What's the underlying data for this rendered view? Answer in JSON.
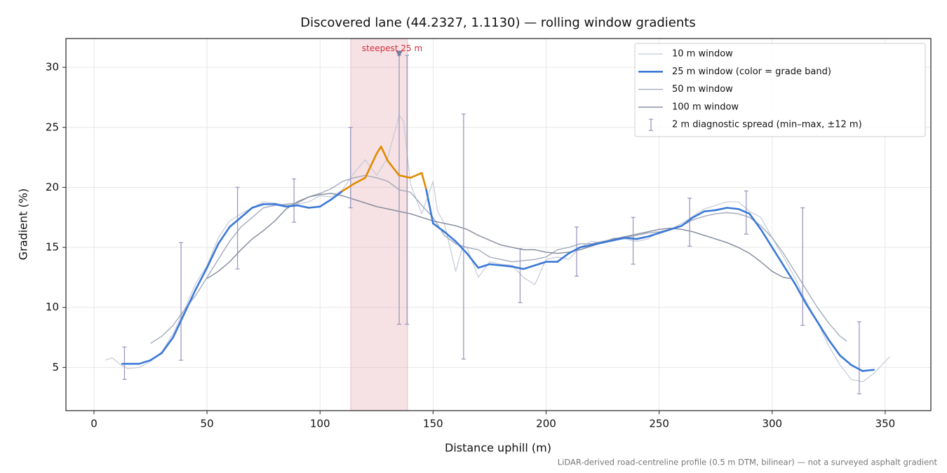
{
  "chart_data": {
    "type": "line",
    "title": "Discovered lane (44.2327, 1.1130) — rolling window gradients",
    "x_label": "Distance uphill (m)",
    "y_label": "Gradient (%)",
    "footnote": "LiDAR-derived road-centreline profile (0.5 m DTM, bilinear) — not a surveyed asphalt gradient",
    "xlim": [
      -12.4,
      370.2
    ],
    "ylim": [
      1.4,
      32.4
    ],
    "xticks": [
      0,
      50,
      100,
      150,
      200,
      250,
      300,
      350
    ],
    "yticks": [
      5,
      10,
      15,
      20,
      25,
      30
    ],
    "grid": true,
    "legend": "upper right",
    "series": [
      {
        "name": "10 m window",
        "color": "#c4cad6",
        "width": 1.2,
        "x": [
          5,
          8,
          12,
          15,
          20,
          25,
          30,
          35,
          40,
          45,
          50,
          55,
          60,
          65,
          70,
          75,
          80,
          85,
          90,
          95,
          100,
          105,
          110,
          115,
          120,
          125,
          130,
          135,
          137,
          140,
          145,
          150,
          152,
          155,
          160,
          163,
          165,
          170,
          175,
          180,
          185,
          190,
          195,
          200,
          205,
          210,
          215,
          220,
          225,
          230,
          235,
          240,
          245,
          250,
          255,
          260,
          265,
          270,
          275,
          280,
          285,
          290,
          295,
          300,
          305,
          310,
          315,
          320,
          325,
          330,
          335,
          340,
          345,
          350,
          352
        ],
        "values": [
          5.6,
          5.8,
          5.2,
          4.9,
          5.0,
          5.5,
          6.3,
          7.8,
          9.8,
          12,
          13.5,
          15.8,
          17.2,
          17.8,
          18.3,
          18.8,
          18.7,
          18.5,
          18.6,
          18.8,
          19.3,
          19.2,
          19.8,
          21.2,
          22.3,
          21.0,
          22.5,
          26.0,
          25.5,
          20.3,
          17.8,
          20.5,
          18,
          17,
          13.0,
          15,
          15,
          12.5,
          13.8,
          13.6,
          13.5,
          12.5,
          11.9,
          14.0,
          14.2,
          14.0,
          15.0,
          15.5,
          15.4,
          15.8,
          15.7,
          15.5,
          15.7,
          16.3,
          16.5,
          17.0,
          17.6,
          18.2,
          18.5,
          18.8,
          18.8,
          18.0,
          17.5,
          15.8,
          14.2,
          12.5,
          10.5,
          8.8,
          6.8,
          5.2,
          4.0,
          3.8,
          4.5,
          5.5,
          5.9
        ]
      },
      {
        "name": "25 m window (color = grade band)",
        "color": "#3a78d8",
        "width": 2.6,
        "x": [
          12.5,
          15,
          20,
          25,
          30,
          35,
          40,
          45,
          50,
          55,
          60,
          65,
          70,
          75,
          80,
          85,
          90,
          95,
          100,
          105,
          110,
          115,
          120,
          125,
          127,
          130,
          135,
          140,
          145,
          147,
          150,
          155,
          160,
          165,
          170,
          175,
          180,
          185,
          190,
          195,
          200,
          205,
          210,
          215,
          220,
          225,
          230,
          235,
          240,
          245,
          250,
          255,
          260,
          265,
          270,
          275,
          280,
          285,
          290,
          295,
          300,
          305,
          310,
          315,
          320,
          325,
          330,
          335,
          340,
          345
        ],
        "values": [
          5.3,
          5.3,
          5.3,
          5.6,
          6.2,
          7.5,
          9.5,
          11.5,
          13.3,
          15.3,
          16.7,
          17.5,
          18.3,
          18.6,
          18.6,
          18.4,
          18.5,
          18.3,
          18.4,
          19.0,
          19.7,
          20.3,
          20.8,
          22.8,
          23.4,
          22.2,
          21.0,
          20.8,
          21.2,
          19.8,
          17.0,
          16.3,
          15.5,
          14.5,
          13.3,
          13.6,
          13.5,
          13.4,
          13.2,
          13.5,
          13.8,
          13.8,
          14.5,
          15.0,
          15.2,
          15.4,
          15.6,
          15.8,
          15.7,
          15.9,
          16.2,
          16.5,
          16.8,
          17.5,
          18.0,
          18.1,
          18.3,
          18.2,
          17.8,
          16.5,
          15.0,
          13.5,
          12.0,
          10.3,
          8.8,
          7.3,
          6.0,
          5.2,
          4.7,
          4.8
        ],
        "band_colors": [
          "#3a78d8",
          "#3a78d8",
          "#3a78d8",
          "#3a78d8",
          "#3a78d8",
          "#3a78d8",
          "#3a78d8",
          "#3a78d8",
          "#3a78d8",
          "#3a78d8",
          "#3a78d8",
          "#3a78d8",
          "#3a78d8",
          "#3a78d8",
          "#3a78d8",
          "#3a78d8",
          "#3a78d8",
          "#3a78d8",
          "#3a78d8",
          "#3a78d8",
          "#e08a00",
          "#e08a00",
          "#e08a00",
          "#e08a00",
          "#e08a00",
          "#e08a00",
          "#e08a00",
          "#e08a00",
          "#e08a00",
          "#3a78d8",
          "#3a78d8",
          "#3a78d8",
          "#3a78d8",
          "#3a78d8",
          "#3a78d8",
          "#3a78d8",
          "#3a78d8",
          "#3a78d8",
          "#3a78d8",
          "#3a78d8",
          "#3a78d8",
          "#3a78d8",
          "#3a78d8",
          "#3a78d8",
          "#3a78d8",
          "#3a78d8",
          "#3a78d8",
          "#3a78d8",
          "#3a78d8",
          "#3a78d8",
          "#3a78d8",
          "#3a78d8",
          "#3a78d8",
          "#3a78d8",
          "#3a78d8",
          "#3a78d8",
          "#3a78d8",
          "#3a78d8",
          "#3a78d8",
          "#3a78d8",
          "#3a78d8",
          "#3a78d8",
          "#3a78d8",
          "#3a78d8",
          "#3a78d8",
          "#3a78d8",
          "#3a78d8",
          "#3a78d8",
          "#3a78d8",
          "#3a78d8"
        ]
      },
      {
        "name": "50 m window",
        "color": "#a2aabb",
        "width": 1.4,
        "x": [
          25,
          30,
          35,
          40,
          45,
          50,
          55,
          60,
          65,
          70,
          75,
          80,
          85,
          90,
          95,
          100,
          105,
          110,
          115,
          120,
          125,
          130,
          135,
          140,
          145,
          150,
          155,
          160,
          165,
          170,
          175,
          180,
          185,
          190,
          195,
          200,
          205,
          210,
          215,
          220,
          225,
          230,
          235,
          240,
          245,
          250,
          255,
          260,
          265,
          270,
          275,
          280,
          285,
          290,
          295,
          300,
          305,
          310,
          315,
          320,
          325,
          330,
          333
        ],
        "values": [
          7.0,
          7.6,
          8.5,
          9.8,
          11.0,
          12.5,
          14.0,
          15.5,
          16.7,
          17.5,
          18.3,
          18.5,
          18.6,
          18.7,
          19.2,
          19.5,
          19.9,
          20.5,
          20.8,
          21.0,
          20.8,
          20.5,
          19.8,
          19.6,
          18.5,
          17.5,
          16.0,
          15.3,
          15.0,
          14.8,
          14.2,
          14.0,
          13.8,
          13.9,
          14.0,
          14.2,
          14.8,
          15.0,
          15.3,
          15.3,
          15.5,
          15.7,
          15.8,
          16.0,
          16.2,
          16.3,
          16.5,
          16.8,
          17.3,
          17.6,
          17.8,
          17.9,
          17.8,
          17.5,
          16.8,
          15.8,
          14.5,
          13.0,
          11.5,
          10.0,
          8.7,
          7.6,
          7.2
        ]
      },
      {
        "name": "100 m window",
        "color": "#808899",
        "width": 1.4,
        "x": [
          50,
          55,
          60,
          65,
          70,
          75,
          80,
          85,
          90,
          95,
          100,
          105,
          110,
          115,
          120,
          125,
          130,
          135,
          140,
          145,
          150,
          155,
          160,
          165,
          170,
          175,
          180,
          185,
          190,
          195,
          200,
          205,
          210,
          215,
          220,
          225,
          230,
          235,
          240,
          245,
          250,
          255,
          260,
          265,
          270,
          275,
          280,
          285,
          290,
          295,
          300,
          305,
          308
        ],
        "values": [
          12.4,
          13.0,
          13.8,
          14.8,
          15.7,
          16.4,
          17.2,
          18.2,
          18.8,
          19.2,
          19.4,
          19.5,
          19.3,
          19.0,
          18.7,
          18.4,
          18.2,
          18.0,
          17.8,
          17.5,
          17.2,
          17.0,
          16.8,
          16.5,
          16.0,
          15.6,
          15.2,
          15.0,
          14.8,
          14.8,
          14.6,
          14.5,
          14.6,
          14.8,
          15.1,
          15.4,
          15.7,
          15.9,
          16.1,
          16.3,
          16.5,
          16.6,
          16.5,
          16.3,
          16.0,
          15.7,
          15.4,
          15.0,
          14.5,
          13.8,
          13.0,
          12.5,
          12.4
        ]
      }
    ],
    "error_bars": {
      "name": "2 m diagnostic spread (min–max, ±12 m)",
      "color": "#9d98c2",
      "x": [
        13.5,
        38.5,
        63.5,
        88.5,
        113.5,
        135,
        138.5,
        163.5,
        188.5,
        213.5,
        238.5,
        263.5,
        288.5,
        313.5,
        338.5
      ],
      "low": [
        4.0,
        5.6,
        13.2,
        17.1,
        18.3,
        8.6,
        8.6,
        5.7,
        10.4,
        12.6,
        13.6,
        15.1,
        16.1,
        8.5,
        2.8
      ],
      "high": [
        6.7,
        15.4,
        20.0,
        20.7,
        25.0,
        31.0,
        31.0,
        26.1,
        14.9,
        16.7,
        17.5,
        19.1,
        19.7,
        18.3,
        8.8
      ]
    },
    "annotation": {
      "text": "steepest 25 m",
      "x": 135,
      "y": 31.1,
      "x_range": [
        113.6,
        138.7
      ],
      "color": "#d0303c",
      "band_color": "#e8b4bc",
      "marker_color": "#7a7a9a"
    }
  }
}
